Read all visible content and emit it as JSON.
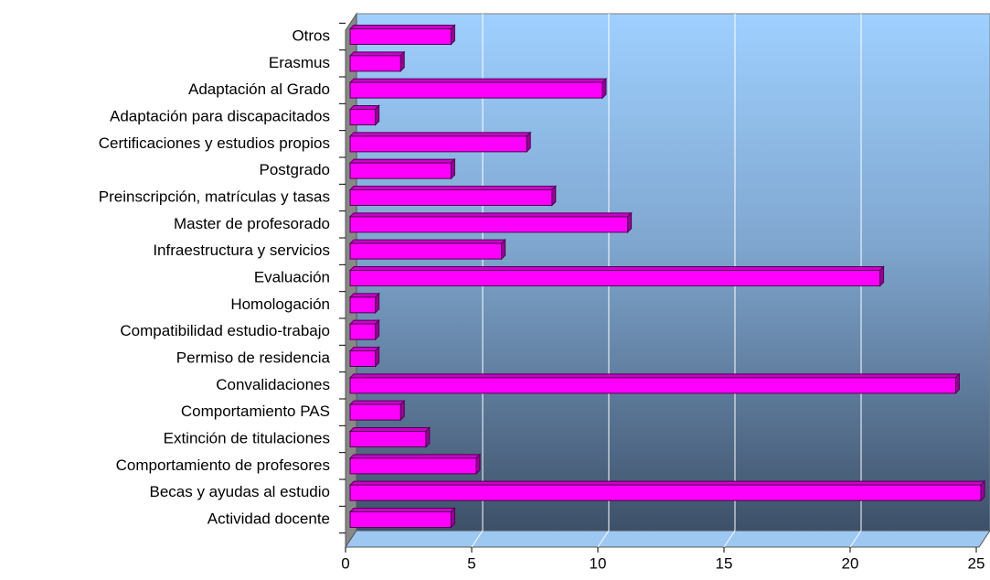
{
  "chart_data": {
    "type": "bar",
    "orientation": "horizontal",
    "categories": [
      "Actividad docente",
      "Becas y ayudas al estudio",
      "Comportamiento de profesores",
      "Extinción de titulaciones",
      "Comportamiento PAS",
      "Convalidaciones",
      "Permiso de residencia",
      "Compatibilidad estudio-trabajo",
      "Homologación",
      "Evaluación",
      "Infraestructura y servicios",
      "Master de profesorado",
      "Preinscripción, matrículas y tasas",
      "Postgrado",
      "Certificaciones y estudios propios",
      "Adaptación para discapacitados",
      "Adaptación al Grado",
      "Erasmus",
      "Otros"
    ],
    "values": [
      4,
      25,
      5,
      3,
      2,
      24,
      1,
      1,
      1,
      21,
      6,
      11,
      8,
      4,
      7,
      1,
      10,
      2,
      4
    ],
    "color": "#ff00ff",
    "xlim": [
      0,
      25
    ],
    "xticks": [
      0,
      5,
      10,
      15,
      20,
      25
    ],
    "grid": true
  }
}
